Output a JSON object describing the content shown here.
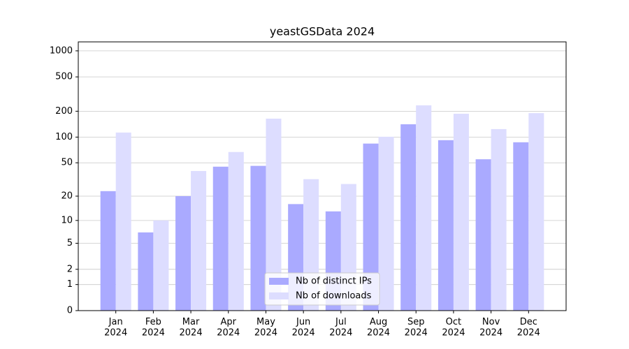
{
  "chart_data": {
    "type": "bar",
    "title": "yeastGSData 2024",
    "categories": [
      "Jan\n2024",
      "Feb\n2024",
      "Mar\n2024",
      "Apr\n2024",
      "May\n2024",
      "Jun\n2024",
      "Jul\n2024",
      "Aug\n2024",
      "Sep\n2024",
      "Oct\n2024",
      "Nov\n2024",
      "Dec\n2024"
    ],
    "series": [
      {
        "name": "Nb of distinct IPs",
        "color": "#aaaaff",
        "values": [
          23,
          7,
          20,
          45,
          46,
          16,
          13,
          84,
          141,
          92,
          55,
          87
        ]
      },
      {
        "name": "Nb of downloads",
        "color": "#ddddff",
        "values": [
          113,
          10,
          40,
          67,
          164,
          32,
          28,
          101,
          234,
          187,
          124,
          190
        ]
      }
    ],
    "yscale": "log1p",
    "ylim": [
      0,
      1270
    ],
    "yticks": [
      0,
      1,
      2,
      5,
      10,
      20,
      50,
      100,
      200,
      500,
      1000
    ],
    "grid": true,
    "legend": "lower center"
  }
}
